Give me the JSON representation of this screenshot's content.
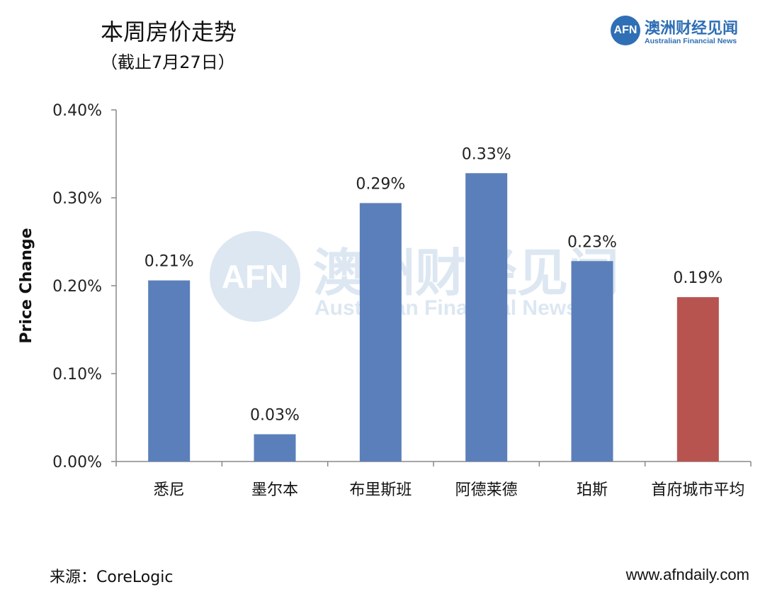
{
  "header": {
    "title": "本周房价走势",
    "subtitle": "（截止7月27日）"
  },
  "brand": {
    "logo_text": "AFN",
    "name_zh": "澳洲财经见闻",
    "name_en": "Australian Financial News",
    "color": "#2f6fb5"
  },
  "watermark": {
    "logo_text": "AFN",
    "name_zh": "澳洲财经见闻",
    "name_en": "Australian Financial News"
  },
  "chart_data": {
    "type": "bar",
    "ylabel": "Price Change",
    "xlabel": "",
    "categories": [
      "悉尼",
      "墨尔本",
      "布里斯班",
      "阿德莱德",
      "珀斯",
      "首府城市平均"
    ],
    "values": [
      0.21,
      0.03,
      0.29,
      0.33,
      0.23,
      0.19
    ],
    "bar_values_precise": [
      0.206,
      0.031,
      0.294,
      0.328,
      0.228,
      0.187
    ],
    "data_labels": [
      "0.21%",
      "0.03%",
      "0.29%",
      "0.33%",
      "0.23%",
      "0.19%"
    ],
    "bar_colors": [
      "#5b7fba",
      "#5b7fba",
      "#5b7fba",
      "#5b7fba",
      "#5b7fba",
      "#b85450"
    ],
    "ylim": [
      0,
      0.4
    ],
    "yticks": [
      0,
      0.1,
      0.2,
      0.3,
      0.4
    ],
    "ytick_labels": [
      "0.00%",
      "0.10%",
      "0.20%",
      "0.30%",
      "0.40%"
    ],
    "grid": false,
    "legend": "none"
  },
  "footer": {
    "source": "来源：CoreLogic",
    "website": "www.afndaily.com"
  }
}
